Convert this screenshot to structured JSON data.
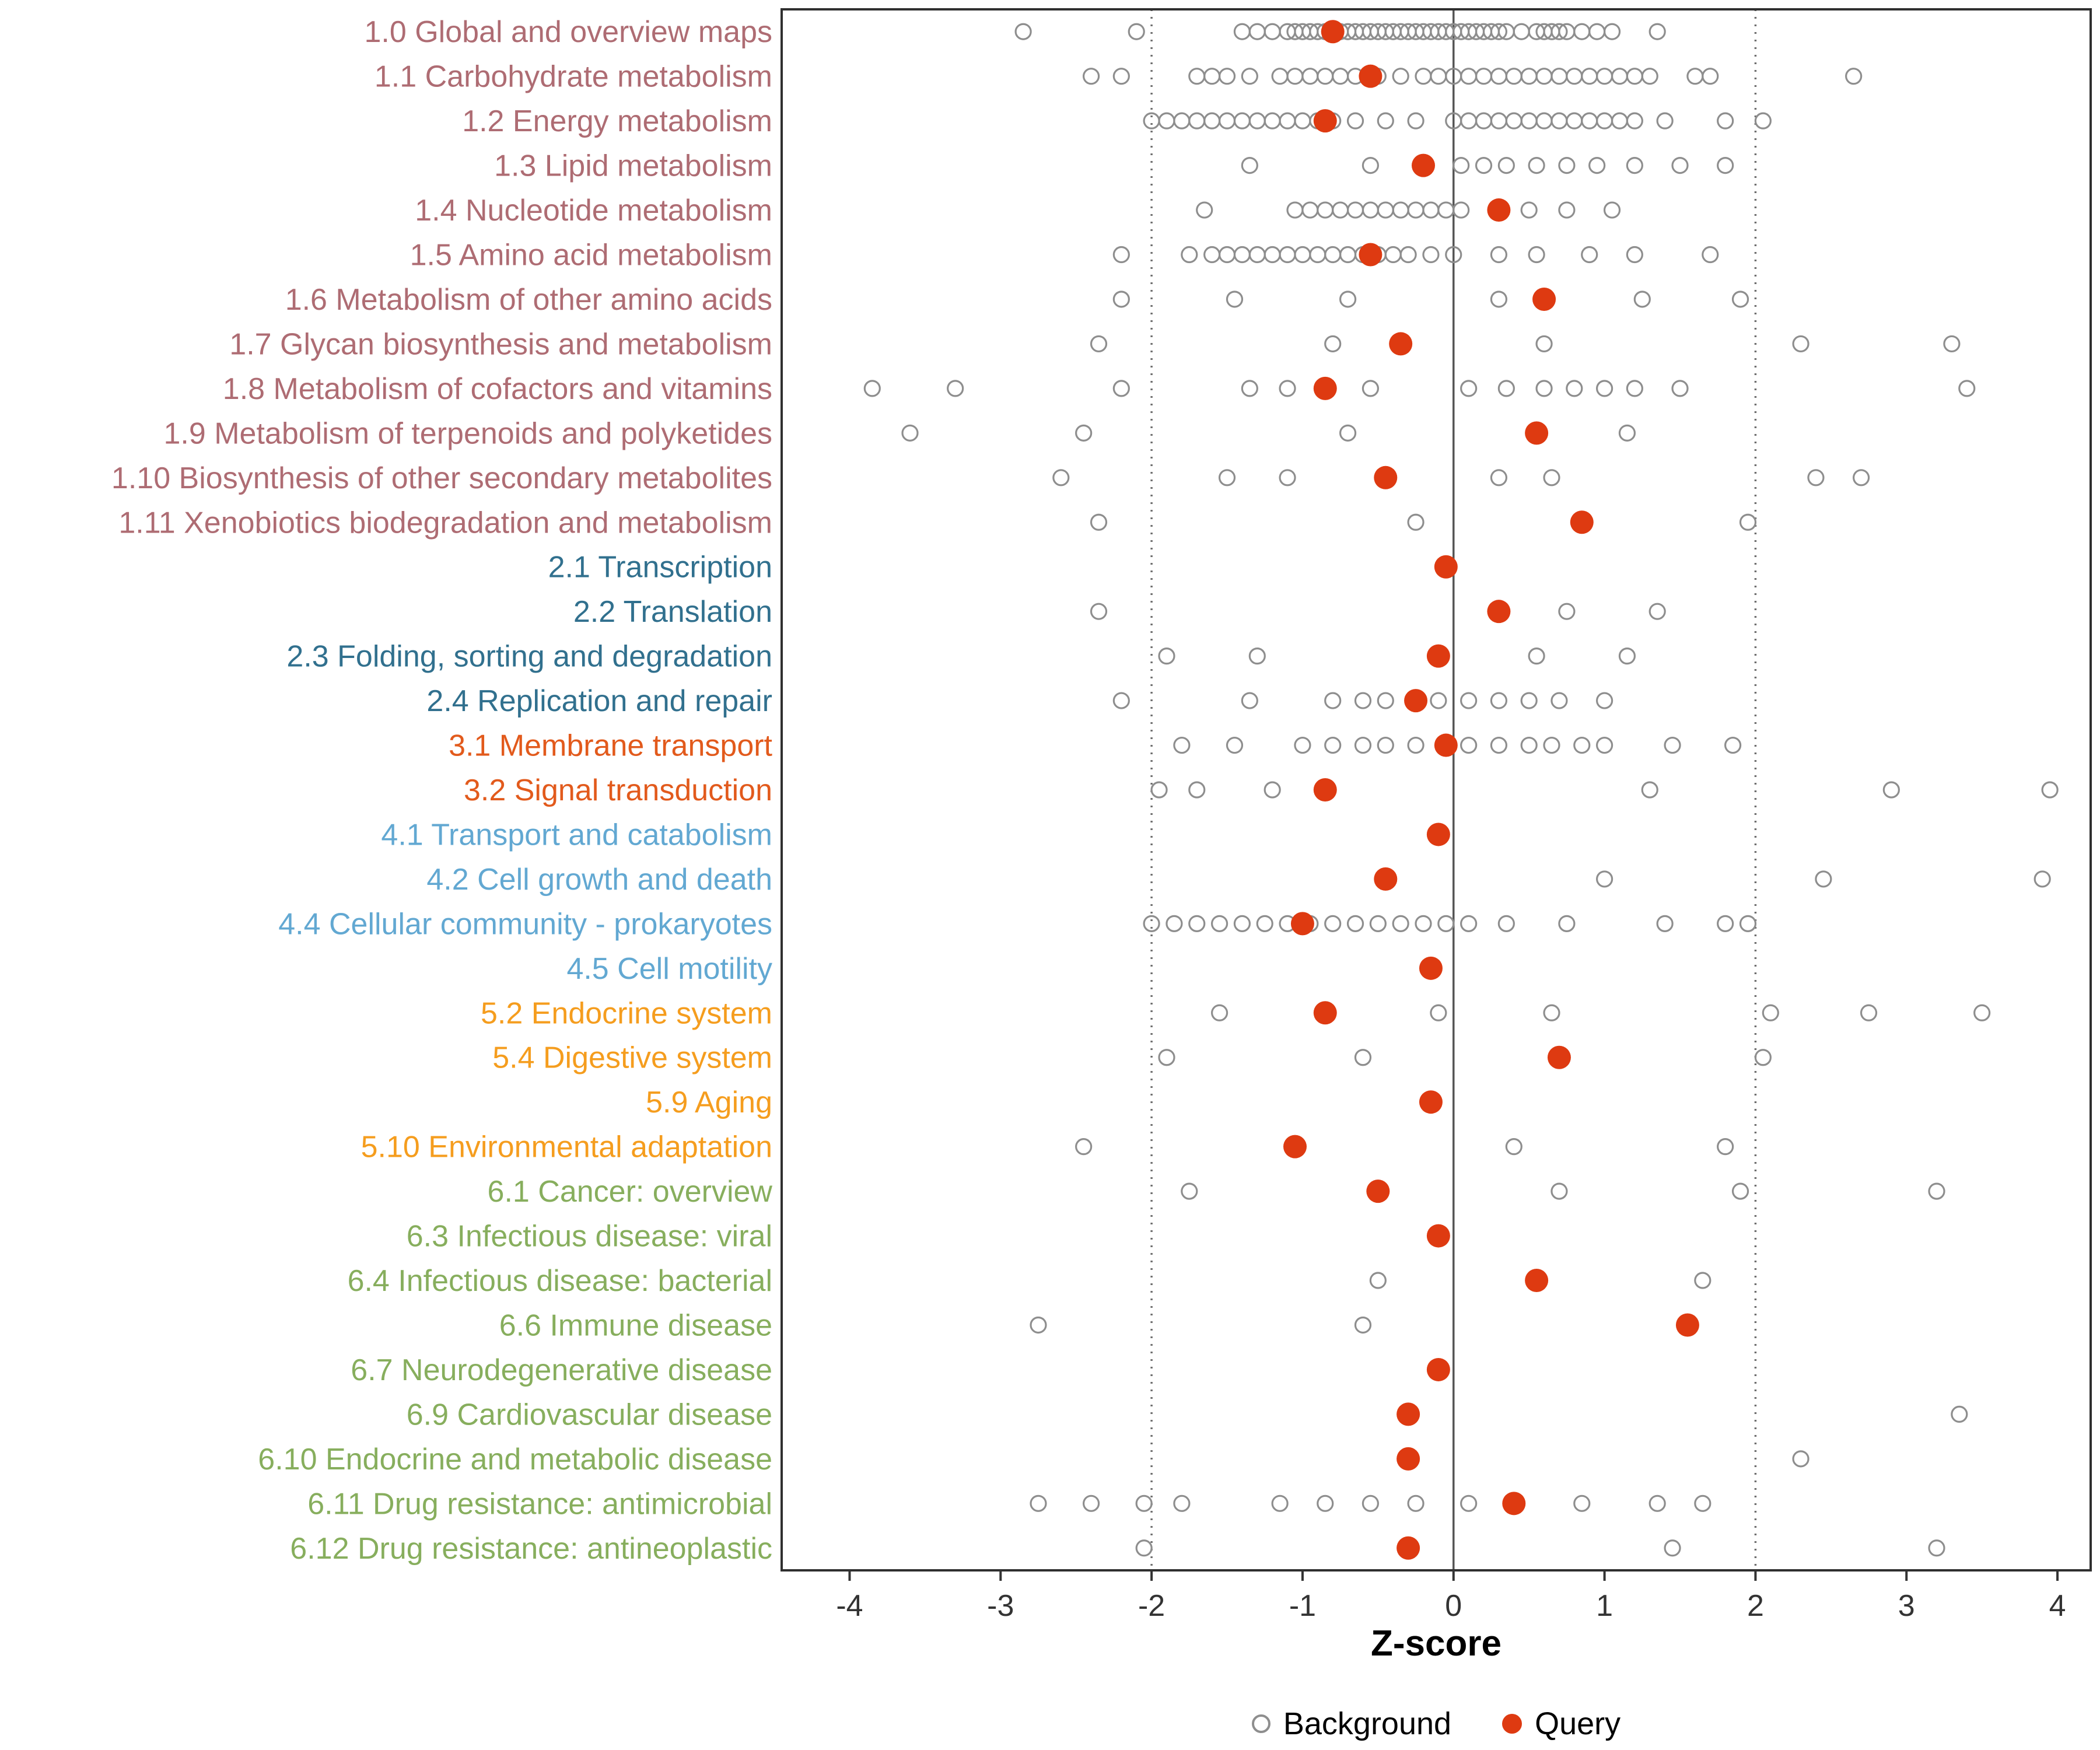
{
  "chart_data": {
    "type": "scatter",
    "title": "",
    "xlabel": "Z-score",
    "ylabel": "",
    "xlim": [
      -4.45,
      4.22
    ],
    "x_ticks": [
      -4,
      -3,
      -2,
      -1,
      0,
      1,
      2,
      3,
      4
    ],
    "reference_lines": {
      "solid": [
        0
      ],
      "dotted": [
        -2,
        2
      ]
    },
    "grid": false,
    "legend_position": "bottom",
    "point_styles": {
      "background": {
        "label": "Background",
        "stroke": "#8E8E8E",
        "fill": "none"
      },
      "query": {
        "label": "Query",
        "fill": "#DE3A11"
      }
    },
    "group_colors": {
      "metabolism": "#AE6C73",
      "genetic_info": "#31708E",
      "env_info": "#E25A1C",
      "cellular": "#62A8D2",
      "organismal": "#F59D1E",
      "disease": "#87AE5D"
    },
    "rows": [
      {
        "label": "1.0 Global and overview maps",
        "group": "metabolism",
        "query": -0.8,
        "background": [
          -2.85,
          -2.1,
          -1.4,
          -1.3,
          -1.2,
          -1.1,
          -1.05,
          -1.0,
          -0.95,
          -0.9,
          -0.85,
          -0.8,
          -0.75,
          -0.7,
          -0.65,
          -0.6,
          -0.55,
          -0.5,
          -0.45,
          -0.4,
          -0.35,
          -0.3,
          -0.25,
          -0.2,
          -0.15,
          -0.1,
          -0.05,
          0.0,
          0.05,
          0.1,
          0.15,
          0.2,
          0.25,
          0.3,
          0.35,
          0.45,
          0.55,
          0.6,
          0.65,
          0.7,
          0.75,
          0.85,
          0.95,
          1.05,
          1.35
        ]
      },
      {
        "label": "1.1 Carbohydrate metabolism",
        "group": "metabolism",
        "query": -0.55,
        "background": [
          -2.4,
          -2.2,
          -1.7,
          -1.6,
          -1.5,
          -1.35,
          -1.15,
          -1.05,
          -0.95,
          -0.85,
          -0.75,
          -0.65,
          -0.5,
          -0.35,
          -0.2,
          -0.1,
          0.0,
          0.1,
          0.2,
          0.3,
          0.4,
          0.5,
          0.6,
          0.7,
          0.8,
          0.9,
          1.0,
          1.1,
          1.2,
          1.3,
          1.6,
          1.7,
          2.65
        ]
      },
      {
        "label": "1.2 Energy metabolism",
        "group": "metabolism",
        "query": -0.85,
        "background": [
          -2.0,
          -1.9,
          -1.8,
          -1.7,
          -1.6,
          -1.5,
          -1.4,
          -1.3,
          -1.2,
          -1.1,
          -1.0,
          -0.9,
          -0.8,
          -0.65,
          -0.45,
          -0.25,
          0.0,
          0.1,
          0.2,
          0.3,
          0.4,
          0.5,
          0.6,
          0.7,
          0.8,
          0.9,
          1.0,
          1.1,
          1.2,
          1.4,
          1.8,
          2.05
        ]
      },
      {
        "label": "1.3 Lipid metabolism",
        "group": "metabolism",
        "query": -0.2,
        "background": [
          -1.35,
          -0.55,
          0.05,
          0.2,
          0.35,
          0.55,
          0.75,
          0.95,
          1.2,
          1.5,
          1.8
        ]
      },
      {
        "label": "1.4 Nucleotide metabolism",
        "group": "metabolism",
        "query": 0.3,
        "background": [
          -1.65,
          -1.05,
          -0.95,
          -0.85,
          -0.75,
          -0.65,
          -0.55,
          -0.45,
          -0.35,
          -0.25,
          -0.15,
          -0.05,
          0.05,
          0.3,
          0.5,
          0.75,
          1.05
        ]
      },
      {
        "label": "1.5 Amino acid metabolism",
        "group": "metabolism",
        "query": -0.55,
        "background": [
          -2.2,
          -1.75,
          -1.6,
          -1.5,
          -1.4,
          -1.3,
          -1.2,
          -1.1,
          -1.0,
          -0.9,
          -0.8,
          -0.7,
          -0.6,
          -0.5,
          -0.4,
          -0.3,
          -0.15,
          0.0,
          0.3,
          0.55,
          0.9,
          1.2,
          1.7
        ]
      },
      {
        "label": "1.6 Metabolism of other amino acids",
        "group": "metabolism",
        "query": 0.6,
        "background": [
          -2.2,
          -1.45,
          -0.7,
          0.3,
          1.25,
          1.9
        ]
      },
      {
        "label": "1.7 Glycan biosynthesis and metabolism",
        "group": "metabolism",
        "query": -0.35,
        "background": [
          -2.35,
          -0.8,
          0.6,
          2.3,
          3.3
        ]
      },
      {
        "label": "1.8 Metabolism of cofactors and vitamins",
        "group": "metabolism",
        "query": -0.85,
        "background": [
          -3.85,
          -3.3,
          -2.2,
          -1.35,
          -1.1,
          -0.55,
          0.1,
          0.35,
          0.6,
          0.8,
          1.0,
          1.2,
          1.5,
          3.4
        ]
      },
      {
        "label": "1.9 Metabolism of terpenoids and polyketides",
        "group": "metabolism",
        "query": 0.55,
        "background": [
          -3.6,
          -2.45,
          -0.7,
          1.15
        ]
      },
      {
        "label": "1.10 Biosynthesis of other secondary metabolites",
        "group": "metabolism",
        "query": -0.45,
        "background": [
          -2.6,
          -1.5,
          -1.1,
          0.3,
          0.65,
          2.4,
          2.7
        ]
      },
      {
        "label": "1.11 Xenobiotics biodegradation and metabolism",
        "group": "metabolism",
        "query": 0.85,
        "background": [
          -2.35,
          -0.25,
          1.95
        ]
      },
      {
        "label": "2.1 Transcription",
        "group": "genetic_info",
        "query": -0.05,
        "background": []
      },
      {
        "label": "2.2 Translation",
        "group": "genetic_info",
        "query": 0.3,
        "background": [
          -2.35,
          0.75,
          1.35
        ]
      },
      {
        "label": "2.3 Folding, sorting and degradation",
        "group": "genetic_info",
        "query": -0.1,
        "background": [
          -1.9,
          -1.3,
          0.55,
          1.15
        ]
      },
      {
        "label": "2.4 Replication and repair",
        "group": "genetic_info",
        "query": -0.25,
        "background": [
          -2.2,
          -1.35,
          -0.8,
          -0.6,
          -0.45,
          -0.1,
          0.1,
          0.3,
          0.5,
          0.7,
          1.0
        ]
      },
      {
        "label": "3.1 Membrane transport",
        "group": "env_info",
        "query": -0.05,
        "background": [
          -1.8,
          -1.45,
          -1.0,
          -0.8,
          -0.6,
          -0.45,
          -0.25,
          0.1,
          0.3,
          0.5,
          0.65,
          0.85,
          1.0,
          1.45,
          1.85
        ]
      },
      {
        "label": "3.2 Signal transduction",
        "group": "env_info",
        "query": -0.85,
        "background": [
          -1.95,
          -1.7,
          -1.2,
          1.3,
          2.9,
          3.95
        ]
      },
      {
        "label": "4.1 Transport and catabolism",
        "group": "cellular",
        "query": -0.1,
        "background": []
      },
      {
        "label": "4.2 Cell growth and death",
        "group": "cellular",
        "query": -0.45,
        "background": [
          1.0,
          2.45,
          3.9
        ]
      },
      {
        "label": "4.4 Cellular community - prokaryotes",
        "group": "cellular",
        "query": -1.0,
        "background": [
          -2.0,
          -1.85,
          -1.7,
          -1.55,
          -1.4,
          -1.25,
          -1.1,
          -0.95,
          -0.8,
          -0.65,
          -0.5,
          -0.35,
          -0.2,
          -0.05,
          0.1,
          0.35,
          0.75,
          1.4,
          1.8,
          1.95
        ]
      },
      {
        "label": "4.5 Cell motility",
        "group": "cellular",
        "query": -0.15,
        "background": []
      },
      {
        "label": "5.2 Endocrine system",
        "group": "organismal",
        "query": -0.85,
        "background": [
          -1.55,
          -0.1,
          0.65,
          2.1,
          2.75,
          3.5
        ]
      },
      {
        "label": "5.4 Digestive system",
        "group": "organismal",
        "query": 0.7,
        "background": [
          -1.9,
          -0.6,
          2.05
        ]
      },
      {
        "label": "5.9 Aging",
        "group": "organismal",
        "query": -0.15,
        "background": []
      },
      {
        "label": "5.10 Environmental adaptation",
        "group": "organismal",
        "query": -1.05,
        "background": [
          -2.45,
          0.4,
          1.8
        ]
      },
      {
        "label": "6.1 Cancer: overview",
        "group": "disease",
        "query": -0.5,
        "background": [
          -1.75,
          0.7,
          1.9,
          3.2
        ]
      },
      {
        "label": "6.3 Infectious disease: viral",
        "group": "disease",
        "query": -0.1,
        "background": []
      },
      {
        "label": "6.4 Infectious disease: bacterial",
        "group": "disease",
        "query": 0.55,
        "background": [
          -0.5,
          1.65
        ]
      },
      {
        "label": "6.6 Immune disease",
        "group": "disease",
        "query": 1.55,
        "background": [
          -2.75,
          -0.6
        ]
      },
      {
        "label": "6.7 Neurodegenerative disease",
        "group": "disease",
        "query": -0.1,
        "background": []
      },
      {
        "label": "6.9 Cardiovascular disease",
        "group": "disease",
        "query": -0.3,
        "background": [
          3.35
        ]
      },
      {
        "label": "6.10 Endocrine and metabolic disease",
        "group": "disease",
        "query": -0.3,
        "background": [
          2.3
        ]
      },
      {
        "label": "6.11 Drug resistance: antimicrobial",
        "group": "disease",
        "query": 0.4,
        "background": [
          -2.75,
          -2.4,
          -2.05,
          -1.8,
          -1.15,
          -0.85,
          -0.55,
          -0.25,
          0.1,
          0.85,
          1.35,
          1.65
        ]
      },
      {
        "label": "6.12 Drug resistance: antineoplastic",
        "group": "disease",
        "query": -0.3,
        "background": [
          -2.05,
          1.45,
          3.2
        ]
      }
    ]
  },
  "axis": {
    "title": "Z-score",
    "tick_labels": [
      "-4",
      "-3",
      "-2",
      "-1",
      "0",
      "1",
      "2",
      "3",
      "4"
    ]
  },
  "legend": {
    "background": "Background",
    "query": "Query"
  },
  "colors": {
    "panel_border": "#2F2F2F",
    "zero_line": "#555555",
    "threshold_line": "#6E6E6E",
    "tick_text": "#333333",
    "background_point_stroke": "#8E8E8E",
    "query_point_fill": "#DE3A11"
  }
}
